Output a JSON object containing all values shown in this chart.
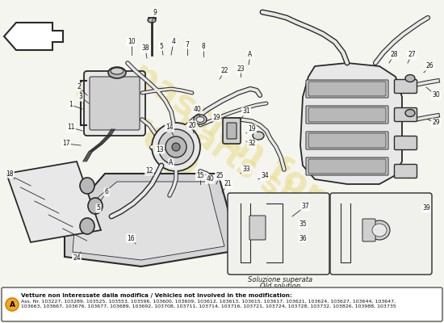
{
  "bg_color": "#f5f5f0",
  "line_color": "#2a2a2a",
  "part_color": "#d0d0d0",
  "part_color2": "#b8b8b8",
  "part_color3": "#e8e8e8",
  "watermark_color": "#e8d878",
  "sub_box_bg": "#f0f0ec",
  "label_A_circle_color": "#f5a623",
  "bottom_text_title": "Vetture non interessate dalla modifica / Vehicles not involved in the modification:",
  "bottom_text_body": "Ass. Nr. 103227, 103289, 103525, 103553, 103596, 103600, 103609, 103612, 103613, 103615, 103617, 103621, 103624, 103627, 103644, 103647,\n103663, 103667, 103676, 103677, 103689, 103692, 103708, 103711, 103714, 103716, 103721, 103724, 103728, 103732, 103826, 103988, 103735",
  "sub_box_label": "Soluzione superata\nOld solution"
}
